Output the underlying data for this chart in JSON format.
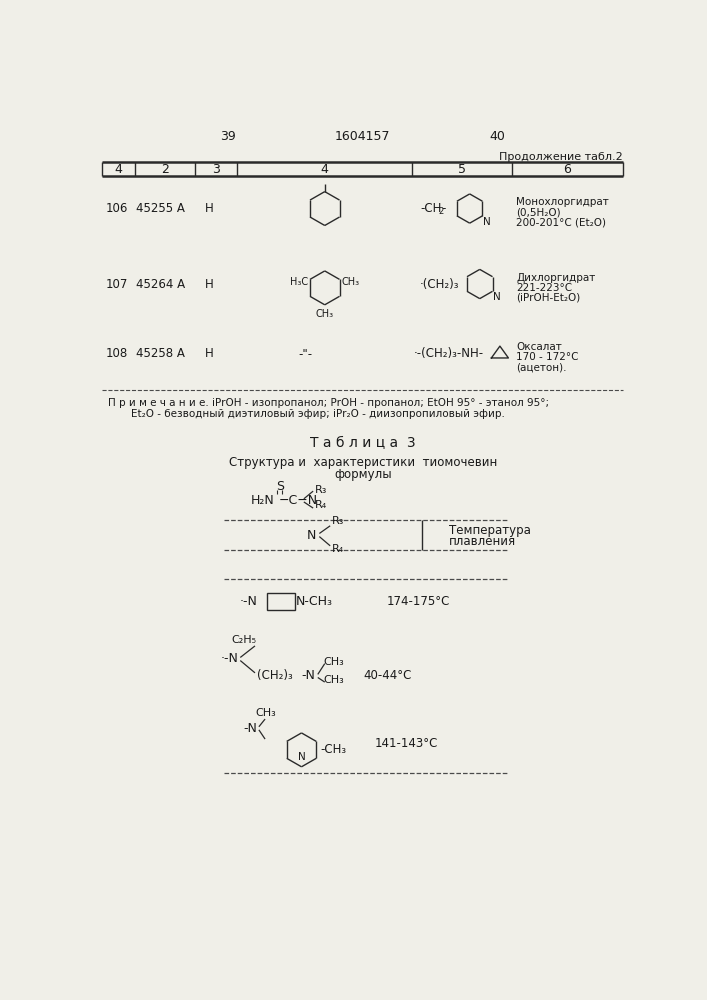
{
  "bg_color": "#f0efe8",
  "text_color": "#1a1a1a",
  "line_color": "#2a2a2a",
  "dashed_color": "#4a4a4a",
  "page_left": "39",
  "page_center": "1604157",
  "page_right": "40",
  "continuation": "Продолжение табл.2",
  "headers": [
    "4",
    "2",
    "3",
    "4",
    "5",
    "6"
  ],
  "r106_c1": "106",
  "r106_c2": "45255 А",
  "r106_c3": "H",
  "r106_c6": "Монохлоргидрат\n(0,5H₂O)\n200-201°C (Et₂O)",
  "r107_c1": "107",
  "r107_c2": "45264 А",
  "r107_c3": "H",
  "r107_c6": "Дихлоргидрат\n221-223°C\n(iPrOH-Et₂O)",
  "r108_c1": "108",
  "r108_c2": "45258 А",
  "r108_c3": "H",
  "r108_c4": "-\"-",
  "r108_c6": "Оксалат\n170 - 172°C\n(ацетон).",
  "note1": "П р и м е ч а н и е. iPrOH - изопропанол; PrOH - пропанол; EtOH 95° - этанол 95°;",
  "note2": "Et₂O - безводный диэтиловый эфир; iPr₂O - диизопропиловый эфир.",
  "t3_title": "Т а б л и ц а  3",
  "t3_sub1": "Структура и  характеристики  тиомочевин",
  "t3_sub2": "формулы",
  "t3_h2": "Температура\nплавления",
  "t3_r1_temp": "174-175°C",
  "t3_r2_temp": "40-44°C",
  "t3_r3_temp": "141-143°C"
}
